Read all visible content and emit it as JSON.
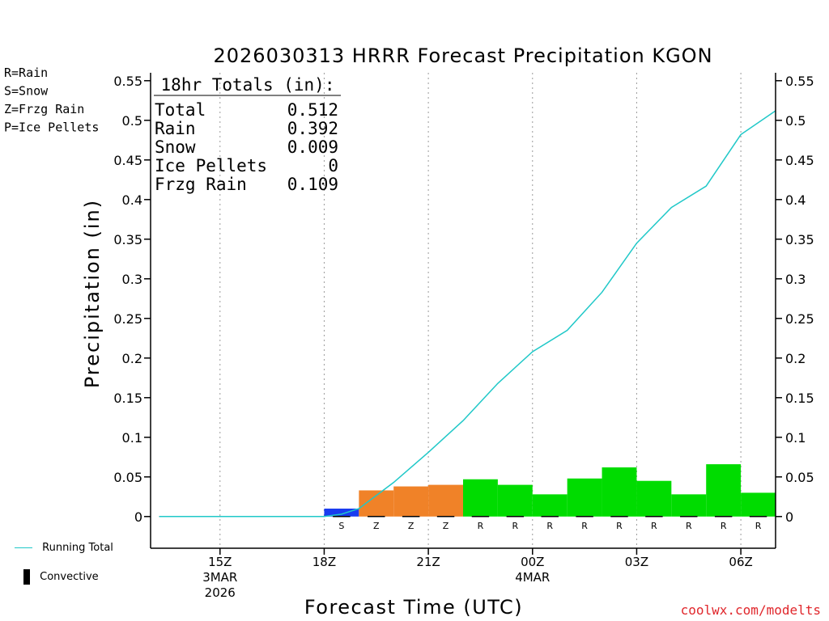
{
  "chart_data": {
    "type": "bar",
    "title": "2026030313 HRRR Forecast Precipitation KGON",
    "xlabel": "Forecast Time (UTC)",
    "ylabel": "Precipitation (in)",
    "ylim": [
      -0.04,
      0.56
    ],
    "y_ticks": [
      0,
      0.05,
      0.1,
      0.15,
      0.2,
      0.25,
      0.3,
      0.35,
      0.4,
      0.45,
      0.5,
      0.55
    ],
    "y_tick_labels": [
      "0",
      "0.05",
      "0.1",
      "0.15",
      "0.2",
      "0.25",
      "0.3",
      "0.35",
      "0.4",
      "0.45",
      "0.5",
      "0.55"
    ],
    "x_range_hours": [
      13.0,
      31.0
    ],
    "x_ticks": [
      {
        "hour": 15,
        "label": "15Z",
        "sub": [
          "3MAR",
          "2026"
        ]
      },
      {
        "hour": 18,
        "label": "18Z",
        "sub": []
      },
      {
        "hour": 21,
        "label": "21Z",
        "sub": []
      },
      {
        "hour": 24,
        "label": "00Z",
        "sub": [
          "4MAR"
        ]
      },
      {
        "hour": 27,
        "label": "03Z",
        "sub": []
      },
      {
        "hour": 30,
        "label": "06Z",
        "sub": []
      }
    ],
    "type_colors": {
      "S": "#1a3cf0",
      "Z": "#f08228",
      "R": "#00dc00",
      "P": "#e8208c"
    },
    "bars": [
      {
        "hour": 19,
        "value": 0.01,
        "type": "S"
      },
      {
        "hour": 20,
        "value": 0.033,
        "type": "Z"
      },
      {
        "hour": 21,
        "value": 0.038,
        "type": "Z"
      },
      {
        "hour": 22,
        "value": 0.04,
        "type": "Z"
      },
      {
        "hour": 23,
        "value": 0.047,
        "type": "R"
      },
      {
        "hour": 24,
        "value": 0.04,
        "type": "R"
      },
      {
        "hour": 25,
        "value": 0.028,
        "type": "R"
      },
      {
        "hour": 26,
        "value": 0.048,
        "type": "R"
      },
      {
        "hour": 27,
        "value": 0.062,
        "type": "R"
      },
      {
        "hour": 28,
        "value": 0.045,
        "type": "R"
      },
      {
        "hour": 29,
        "value": 0.028,
        "type": "R"
      },
      {
        "hour": 30,
        "value": 0.066,
        "type": "R"
      },
      {
        "hour": 31,
        "value": 0.03,
        "type": "R"
      }
    ],
    "type_labels": [
      {
        "hour": 19,
        "type": "S"
      },
      {
        "hour": 20,
        "type": "Z"
      },
      {
        "hour": 21,
        "type": "Z"
      },
      {
        "hour": 22,
        "type": "Z"
      },
      {
        "hour": 23,
        "type": "R"
      },
      {
        "hour": 24,
        "type": "R"
      },
      {
        "hour": 25,
        "type": "R"
      },
      {
        "hour": 26,
        "type": "R"
      },
      {
        "hour": 27,
        "type": "R"
      },
      {
        "hour": 28,
        "type": "R"
      },
      {
        "hour": 29,
        "type": "R"
      },
      {
        "hour": 30,
        "type": "R"
      },
      {
        "hour": 31,
        "type": "R"
      }
    ],
    "running_total": {
      "name": "Running Total",
      "color": "#20c8c8",
      "x": [
        13.25,
        14,
        15,
        16,
        17,
        18,
        18.5,
        19,
        20,
        21,
        22,
        23,
        24,
        25,
        26,
        27,
        28,
        29,
        30,
        31
      ],
      "y": [
        0,
        0,
        0,
        0,
        0,
        0,
        0.003,
        0.01,
        0.043,
        0.081,
        0.121,
        0.168,
        0.208,
        0.235,
        0.283,
        0.345,
        0.39,
        0.417,
        0.482,
        0.512
      ]
    },
    "convective_hours": [
      13.5,
      14.5,
      15.5,
      16.5,
      17.5,
      18.5,
      19.5,
      20.5,
      21.5,
      22.5,
      23.5,
      24.5,
      25.5,
      26.5,
      27.5,
      28.5,
      29.5,
      30.5
    ],
    "totals_box": {
      "title": "18hr Totals (in):",
      "rows": [
        {
          "label": "Total",
          "value": "0.512"
        },
        {
          "label": "Rain",
          "value": "0.392"
        },
        {
          "label": "Snow",
          "value": "0.009"
        },
        {
          "label": "Ice Pellets",
          "value": "0"
        },
        {
          "label": "Frzg Rain",
          "value": "0.109"
        }
      ]
    },
    "type_legend": [
      {
        "text": "R=Rain",
        "color": "#00dc00"
      },
      {
        "text": "S=Snow",
        "color": "#1a3cf0"
      },
      {
        "text": "Z=Frzg Rain",
        "color": "#f08228"
      },
      {
        "text": "P=Ice Pellets",
        "color": "#e8208c"
      }
    ]
  },
  "bottom_legend": {
    "running_total": "Running Total",
    "convective": "Convective"
  },
  "watermark": "coolwx.com/modelts"
}
